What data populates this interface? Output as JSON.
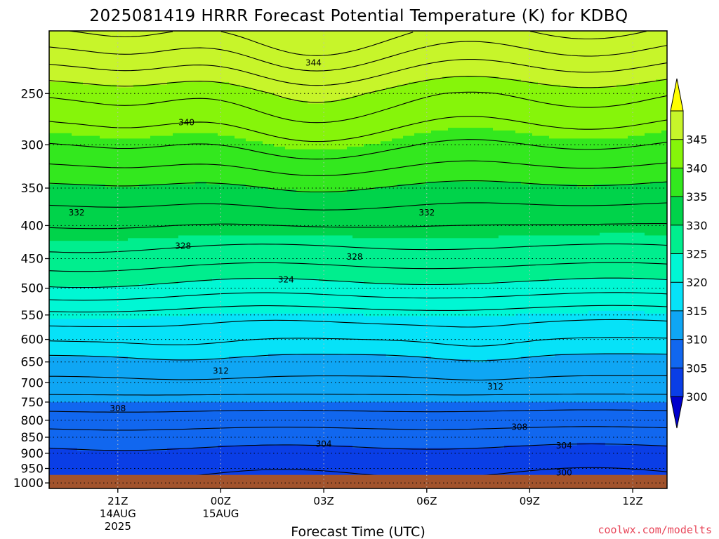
{
  "chart_data": {
    "type": "contour",
    "title": "2025081419 HRRR Forecast Potential Temperature (K) for KDBQ",
    "xlabel": "Forecast Time (UTC)",
    "credit": "coolwx.com/modelts",
    "x_ticks": [
      {
        "label": "21Z",
        "sub": [
          "14AUG",
          "2025"
        ],
        "hour": 2
      },
      {
        "label": "00Z",
        "sub": [
          "15AUG"
        ],
        "hour": 5
      },
      {
        "label": "03Z",
        "sub": [],
        "hour": 8
      },
      {
        "label": "06Z",
        "sub": [],
        "hour": 11
      },
      {
        "label": "09Z",
        "sub": [],
        "hour": 14
      },
      {
        "label": "12Z",
        "sub": [],
        "hour": 17
      }
    ],
    "x_range_hours": [
      0,
      18
    ],
    "y_ticks": [
      250,
      300,
      350,
      400,
      450,
      500,
      550,
      600,
      650,
      700,
      750,
      800,
      850,
      900,
      950,
      1000
    ],
    "y_range_hpa": [
      200,
      1020
    ],
    "y_scale": "log-pressure",
    "surface_pressure_hpa": 972,
    "colorbar": {
      "levels": [
        300,
        305,
        310,
        315,
        320,
        325,
        330,
        335,
        340,
        345
      ],
      "colors": [
        "#0000cc",
        "#0a3ee6",
        "#1167ef",
        "#0fa6f4",
        "#06e2f8",
        "#00f7d4",
        "#00ee8e",
        "#00d34a",
        "#33e81e",
        "#86f50a",
        "#c7f52a",
        "#ffff00"
      ]
    },
    "contour_labels": [
      {
        "value": "344",
        "hour": 7.7,
        "hpa": 224
      },
      {
        "value": "340",
        "hour": 4.0,
        "hpa": 277
      },
      {
        "value": "332",
        "hour": 0.8,
        "hpa": 382
      },
      {
        "value": "332",
        "hour": 11.0,
        "hpa": 382
      },
      {
        "value": "328",
        "hour": 3.9,
        "hpa": 430
      },
      {
        "value": "328",
        "hour": 8.9,
        "hpa": 447
      },
      {
        "value": "324",
        "hour": 6.9,
        "hpa": 485
      },
      {
        "value": "312",
        "hour": 5.0,
        "hpa": 671
      },
      {
        "value": "312",
        "hour": 13.0,
        "hpa": 710
      },
      {
        "value": "308",
        "hour": 2.0,
        "hpa": 767
      },
      {
        "value": "308",
        "hour": 13.7,
        "hpa": 820
      },
      {
        "value": "304",
        "hour": 8.0,
        "hpa": 870
      },
      {
        "value": "304",
        "hour": 15.0,
        "hpa": 876
      },
      {
        "value": "300",
        "hour": 15.0,
        "hpa": 964
      }
    ]
  }
}
